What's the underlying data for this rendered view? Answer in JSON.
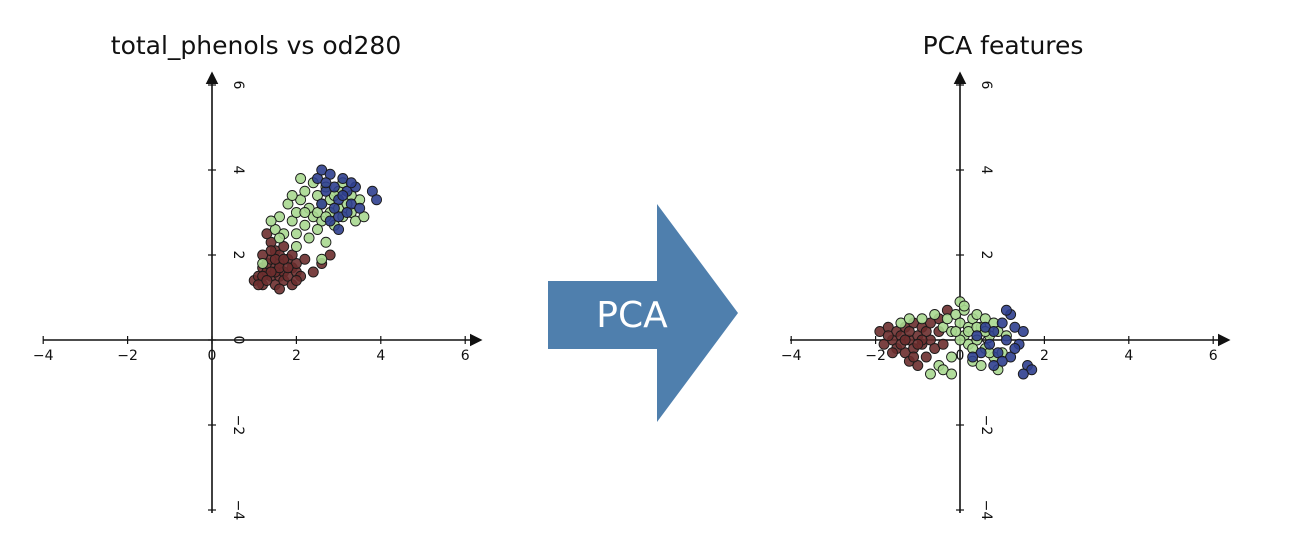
{
  "colors": {
    "class_0": "#6b2e2e",
    "class_1": "#a8d890",
    "class_2": "#2f3f8f",
    "arrow": "#4f7fad",
    "axis": "#111111"
  },
  "arrow": {
    "label": "PCA"
  },
  "chart_data": [
    {
      "type": "scatter",
      "title": "total_phenols vs od280",
      "xlabel": "",
      "ylabel": "",
      "xlim": [
        -4,
        6.3
      ],
      "ylim": [
        -4,
        6.3
      ],
      "x_ticks": [
        -4,
        -2,
        0,
        2,
        4,
        6
      ],
      "y_ticks": [
        -4,
        -2,
        0,
        2,
        4,
        6
      ],
      "grid": false,
      "axes_style": "spines through origin with arrowheads",
      "series": [
        {
          "color": "#6b2e2e",
          "points": [
            [
              1.0,
              1.4
            ],
            [
              1.1,
              1.5
            ],
            [
              1.2,
              1.7
            ],
            [
              1.2,
              1.3
            ],
            [
              1.3,
              1.6
            ],
            [
              1.3,
              1.8
            ],
            [
              1.4,
              1.5
            ],
            [
              1.4,
              1.9
            ],
            [
              1.5,
              1.3
            ],
            [
              1.5,
              1.7
            ],
            [
              1.6,
              1.5
            ],
            [
              1.6,
              1.8
            ],
            [
              1.7,
              1.6
            ],
            [
              1.7,
              1.4
            ],
            [
              1.8,
              1.9
            ],
            [
              1.8,
              1.5
            ],
            [
              1.9,
              1.7
            ],
            [
              2.0,
              1.6
            ],
            [
              2.0,
              1.8
            ],
            [
              2.1,
              1.5
            ],
            [
              1.5,
              2.1
            ],
            [
              1.4,
              2.3
            ],
            [
              1.6,
              2.0
            ],
            [
              1.3,
              2.5
            ],
            [
              1.7,
              2.2
            ],
            [
              1.2,
              2.0
            ],
            [
              1.9,
              1.3
            ],
            [
              1.5,
              1.6
            ],
            [
              1.6,
              1.7
            ],
            [
              1.8,
              1.7
            ],
            [
              2.2,
              1.9
            ],
            [
              2.4,
              1.6
            ],
            [
              2.6,
              1.8
            ],
            [
              2.8,
              2.0
            ],
            [
              1.4,
              1.6
            ],
            [
              1.2,
              1.5
            ],
            [
              1.1,
              1.3
            ],
            [
              1.5,
              1.9
            ],
            [
              2.0,
              1.4
            ],
            [
              1.7,
              1.9
            ],
            [
              1.9,
              2.0
            ],
            [
              1.4,
              2.1
            ],
            [
              1.6,
              1.2
            ],
            [
              1.3,
              1.4
            ]
          ]
        },
        {
          "color": "#a8d890",
          "points": [
            [
              1.2,
              1.8
            ],
            [
              1.5,
              2.6
            ],
            [
              1.6,
              2.9
            ],
            [
              1.7,
              2.5
            ],
            [
              1.8,
              3.2
            ],
            [
              1.9,
              2.8
            ],
            [
              2.0,
              3.0
            ],
            [
              2.1,
              3.3
            ],
            [
              2.2,
              2.7
            ],
            [
              2.2,
              3.5
            ],
            [
              2.3,
              3.1
            ],
            [
              2.4,
              2.9
            ],
            [
              2.5,
              3.4
            ],
            [
              2.6,
              3.2
            ],
            [
              2.6,
              2.8
            ],
            [
              2.7,
              3.6
            ],
            [
              2.8,
              3.0
            ],
            [
              2.8,
              3.3
            ],
            [
              2.9,
              2.7
            ],
            [
              3.0,
              3.1
            ],
            [
              3.0,
              3.5
            ],
            [
              3.1,
              2.9
            ],
            [
              3.2,
              3.2
            ],
            [
              3.3,
              3.0
            ],
            [
              3.4,
              2.8
            ],
            [
              3.5,
              3.3
            ],
            [
              3.6,
              2.9
            ],
            [
              2.0,
              2.5
            ],
            [
              2.3,
              2.4
            ],
            [
              2.5,
              2.6
            ],
            [
              2.7,
              2.3
            ],
            [
              2.4,
              3.7
            ],
            [
              2.1,
              3.8
            ],
            [
              1.9,
              3.4
            ],
            [
              2.6,
              1.9
            ],
            [
              3.1,
              3.7
            ],
            [
              2.9,
              3.4
            ],
            [
              2.2,
              3.0
            ],
            [
              2.5,
              3.0
            ],
            [
              1.6,
              2.4
            ],
            [
              1.4,
              2.8
            ],
            [
              2.7,
              2.9
            ],
            [
              3.3,
              3.4
            ],
            [
              2.0,
              2.2
            ]
          ]
        },
        {
          "color": "#2f3f8f",
          "points": [
            [
              2.5,
              3.8
            ],
            [
              2.6,
              4.0
            ],
            [
              2.7,
              3.5
            ],
            [
              2.8,
              3.9
            ],
            [
              2.9,
              3.6
            ],
            [
              3.0,
              3.3
            ],
            [
              3.1,
              3.8
            ],
            [
              3.2,
              3.5
            ],
            [
              3.3,
              3.2
            ],
            [
              3.4,
              3.6
            ],
            [
              3.5,
              3.1
            ],
            [
              2.8,
              2.8
            ],
            [
              3.0,
              2.9
            ],
            [
              3.2,
              3.0
            ],
            [
              2.6,
              3.2
            ],
            [
              2.9,
              3.1
            ],
            [
              3.1,
              3.4
            ],
            [
              3.3,
              3.7
            ],
            [
              3.8,
              3.5
            ],
            [
              3.9,
              3.3
            ],
            [
              2.7,
              3.7
            ],
            [
              3.0,
              2.6
            ]
          ]
        }
      ]
    },
    {
      "type": "scatter",
      "title": "PCA features",
      "xlabel": "",
      "ylabel": "",
      "xlim": [
        -4,
        6.3
      ],
      "ylim": [
        -4,
        6.3
      ],
      "x_ticks": [
        -4,
        -2,
        0,
        2,
        4,
        6
      ],
      "y_ticks": [
        -4,
        -2,
        0,
        2,
        4,
        6
      ],
      "grid": false,
      "axes_style": "spines through origin with arrowheads",
      "series": [
        {
          "color": "#6b2e2e",
          "points": [
            [
              -1.9,
              0.2
            ],
            [
              -1.8,
              -0.1
            ],
            [
              -1.7,
              0.3
            ],
            [
              -1.6,
              0.0
            ],
            [
              -1.5,
              -0.2
            ],
            [
              -1.5,
              0.2
            ],
            [
              -1.4,
              0.1
            ],
            [
              -1.3,
              -0.3
            ],
            [
              -1.3,
              0.3
            ],
            [
              -1.2,
              0.0
            ],
            [
              -1.1,
              -0.2
            ],
            [
              -1.1,
              0.4
            ],
            [
              -1.0,
              0.1
            ],
            [
              -0.9,
              -0.1
            ],
            [
              -0.9,
              0.3
            ],
            [
              -0.8,
              -0.4
            ],
            [
              -0.7,
              0.0
            ],
            [
              -0.6,
              -0.2
            ],
            [
              -0.5,
              0.2
            ],
            [
              -0.5,
              0.5
            ],
            [
              -1.6,
              -0.3
            ],
            [
              -1.2,
              -0.5
            ],
            [
              -1.0,
              -0.6
            ],
            [
              -0.8,
              0.2
            ],
            [
              -1.4,
              -0.1
            ],
            [
              -1.7,
              0.1
            ],
            [
              -1.2,
              0.2
            ],
            [
              -0.9,
              0.0
            ],
            [
              -1.1,
              -0.4
            ],
            [
              -0.7,
              0.4
            ],
            [
              -0.3,
              0.7
            ],
            [
              -0.4,
              -0.1
            ],
            [
              -1.3,
              0.0
            ],
            [
              -1.0,
              -0.1
            ]
          ]
        },
        {
          "color": "#a8d890",
          "points": [
            [
              -1.4,
              0.4
            ],
            [
              -1.2,
              0.5
            ],
            [
              -0.9,
              0.5
            ],
            [
              -0.6,
              0.6
            ],
            [
              -0.4,
              0.3
            ],
            [
              -0.3,
              0.5
            ],
            [
              -0.2,
              0.2
            ],
            [
              -0.1,
              0.6
            ],
            [
              0.0,
              0.4
            ],
            [
              0.1,
              0.1
            ],
            [
              0.1,
              0.7
            ],
            [
              0.2,
              0.3
            ],
            [
              0.2,
              -0.1
            ],
            [
              0.3,
              0.5
            ],
            [
              0.4,
              0.0
            ],
            [
              0.4,
              0.6
            ],
            [
              0.5,
              0.3
            ],
            [
              0.6,
              -0.2
            ],
            [
              0.6,
              0.5
            ],
            [
              0.7,
              0.1
            ],
            [
              0.8,
              0.4
            ],
            [
              0.8,
              -0.4
            ],
            [
              0.9,
              0.2
            ],
            [
              1.0,
              -0.3
            ],
            [
              1.1,
              0.1
            ],
            [
              0.9,
              -0.7
            ],
            [
              0.0,
              0.9
            ],
            [
              0.1,
              0.8
            ],
            [
              -0.2,
              -0.4
            ],
            [
              -0.5,
              -0.6
            ],
            [
              -0.7,
              -0.8
            ],
            [
              -0.4,
              -0.7
            ],
            [
              -0.2,
              -0.8
            ],
            [
              0.3,
              -0.5
            ],
            [
              0.5,
              -0.6
            ],
            [
              0.7,
              -0.3
            ],
            [
              0.2,
              0.2
            ],
            [
              0.4,
              0.3
            ],
            [
              0.0,
              0.0
            ],
            [
              0.6,
              0.2
            ],
            [
              -0.1,
              0.2
            ],
            [
              0.3,
              -0.2
            ]
          ]
        },
        {
          "color": "#2f3f8f",
          "points": [
            [
              0.4,
              0.1
            ],
            [
              0.6,
              0.3
            ],
            [
              0.7,
              -0.1
            ],
            [
              0.8,
              0.2
            ],
            [
              0.9,
              -0.3
            ],
            [
              1.0,
              0.4
            ],
            [
              1.1,
              0.0
            ],
            [
              1.2,
              0.6
            ],
            [
              1.3,
              0.3
            ],
            [
              1.4,
              -0.1
            ],
            [
              1.5,
              0.2
            ],
            [
              1.2,
              -0.4
            ],
            [
              1.0,
              -0.5
            ],
            [
              0.5,
              -0.3
            ],
            [
              0.3,
              -0.4
            ],
            [
              1.6,
              -0.6
            ],
            [
              1.7,
              -0.7
            ],
            [
              1.5,
              -0.8
            ],
            [
              0.8,
              -0.6
            ],
            [
              1.1,
              0.7
            ],
            [
              1.3,
              -0.2
            ]
          ]
        }
      ]
    }
  ]
}
